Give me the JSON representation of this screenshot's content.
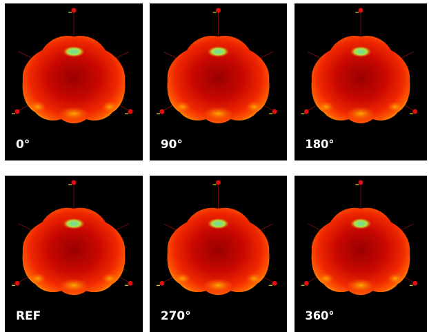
{
  "panels": [
    {
      "label": "0°"
    },
    {
      "label": "90°"
    },
    {
      "label": "180°"
    },
    {
      "label": "REF"
    },
    {
      "label": "270°"
    },
    {
      "label": "360°"
    }
  ]
}
